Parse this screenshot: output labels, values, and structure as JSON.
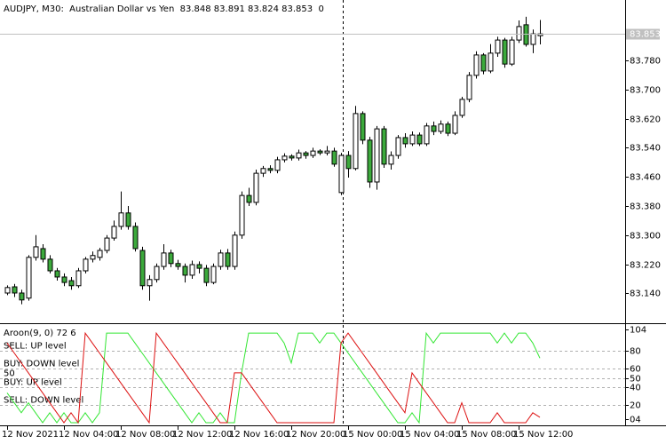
{
  "chart_data": [
    {
      "type": "candlestick",
      "title": "AUDJPY, M30:  Australian Dollar vs Yen  83.848 83.891 83.824 83.853  0",
      "categories": [
        "12 Nov 2021",
        null,
        null,
        null,
        null,
        null,
        null,
        null,
        "12 Nov 04:00",
        null,
        null,
        null,
        null,
        null,
        null,
        null,
        "12 Nov 08:00",
        null,
        null,
        null,
        null,
        null,
        null,
        null,
        "12 Nov 12:00",
        null,
        null,
        null,
        null,
        null,
        null,
        null,
        "12 Nov 16:00",
        null,
        null,
        null,
        null,
        null,
        null,
        null,
        "12 Nov 20:00",
        null,
        null,
        null,
        null,
        null,
        null,
        null,
        "15 Nov 00:00",
        null,
        null,
        null,
        null,
        null,
        null,
        null,
        "15 Nov 04:00",
        null,
        null,
        null,
        null,
        null,
        null,
        null,
        "15 Nov 08:00",
        null,
        null,
        null,
        null,
        null,
        null,
        null,
        "15 Nov 12:00",
        null,
        null,
        null
      ],
      "open": [
        83.141,
        83.158,
        83.141,
        83.127,
        83.239,
        83.263,
        83.234,
        83.202,
        83.185,
        83.175,
        83.161,
        83.202,
        83.234,
        83.239,
        83.258,
        83.292,
        83.324,
        83.361,
        83.324,
        83.258,
        83.161,
        83.178,
        83.214,
        83.251,
        83.222,
        83.214,
        83.19,
        83.219,
        83.209,
        83.17,
        83.214,
        83.251,
        83.214,
        83.3,
        83.409,
        83.39,
        83.47,
        83.483,
        83.478,
        83.507,
        83.517,
        83.512,
        83.526,
        83.519,
        83.531,
        83.526,
        83.531,
        83.417,
        83.519,
        83.483,
        83.634,
        83.561,
        83.446,
        83.592,
        83.495,
        83.519,
        83.568,
        83.551,
        83.575,
        83.551,
        83.6,
        83.585,
        83.605,
        83.58,
        83.629,
        83.673,
        83.739,
        83.795,
        83.751,
        83.8,
        83.836,
        83.77,
        83.836,
        83.878,
        83.824,
        83.848
      ],
      "high": [
        83.162,
        83.166,
        83.15,
        83.245,
        83.3,
        83.275,
        83.245,
        83.21,
        83.195,
        83.185,
        83.21,
        83.24,
        83.255,
        83.265,
        83.3,
        83.34,
        83.42,
        83.38,
        83.335,
        83.268,
        83.19,
        83.222,
        83.275,
        83.26,
        83.232,
        83.222,
        83.23,
        83.228,
        83.218,
        83.222,
        83.26,
        83.262,
        83.31,
        83.42,
        83.43,
        83.48,
        83.49,
        83.492,
        83.515,
        83.525,
        83.522,
        83.535,
        83.531,
        83.54,
        83.536,
        83.545,
        83.54,
        83.526,
        83.531,
        83.655,
        83.64,
        83.57,
        83.6,
        83.6,
        83.53,
        83.575,
        83.58,
        83.585,
        83.582,
        83.608,
        83.612,
        83.615,
        83.612,
        83.64,
        83.68,
        83.748,
        83.805,
        83.8,
        83.825,
        83.845,
        83.842,
        83.845,
        83.89,
        83.9,
        83.865,
        83.891
      ],
      "low": [
        83.135,
        83.13,
        83.11,
        83.12,
        83.23,
        83.225,
        83.195,
        83.175,
        83.16,
        83.15,
        83.155,
        83.195,
        83.225,
        83.23,
        83.25,
        83.285,
        83.315,
        83.315,
        83.255,
        83.15,
        83.12,
        83.17,
        83.205,
        83.212,
        83.205,
        83.17,
        83.18,
        83.195,
        83.16,
        83.165,
        83.205,
        83.205,
        83.205,
        83.29,
        83.38,
        83.382,
        83.46,
        83.47,
        83.47,
        83.5,
        83.505,
        83.505,
        83.51,
        83.512,
        83.52,
        83.519,
        83.488,
        83.41,
        83.458,
        83.478,
        83.55,
        83.43,
        83.425,
        83.485,
        83.48,
        83.51,
        83.54,
        83.545,
        83.545,
        83.545,
        83.575,
        83.578,
        83.572,
        83.575,
        83.622,
        83.665,
        83.73,
        83.742,
        83.745,
        83.79,
        83.76,
        83.765,
        83.828,
        83.818,
        83.8,
        83.824
      ],
      "close": [
        83.156,
        83.141,
        83.122,
        83.239,
        83.268,
        83.234,
        83.202,
        83.185,
        83.17,
        83.161,
        83.202,
        83.234,
        83.244,
        83.258,
        83.292,
        83.324,
        83.361,
        83.324,
        83.263,
        83.161,
        83.178,
        83.214,
        83.251,
        83.222,
        83.214,
        83.19,
        83.219,
        83.209,
        83.17,
        83.214,
        83.251,
        83.214,
        83.3,
        83.409,
        83.39,
        83.47,
        83.483,
        83.478,
        83.507,
        83.517,
        83.512,
        83.526,
        83.519,
        83.531,
        83.526,
        83.531,
        83.495,
        83.519,
        83.483,
        83.634,
        83.561,
        83.446,
        83.592,
        83.495,
        83.519,
        83.568,
        83.551,
        83.575,
        83.551,
        83.6,
        83.585,
        83.605,
        83.58,
        83.629,
        83.673,
        83.739,
        83.795,
        83.751,
        83.8,
        83.836,
        83.77,
        83.836,
        83.873,
        83.824,
        83.853,
        83.853
      ],
      "up_color": "#ffffff",
      "down_color": "#3caa3c",
      "outline_color": "#000000",
      "ylim": [
        83.058,
        83.946
      ],
      "yticks": [
        {
          "value": 83.14,
          "label": "83.140"
        },
        {
          "value": 83.22,
          "label": "83.220"
        },
        {
          "value": 83.3,
          "label": "83.300"
        },
        {
          "value": 83.38,
          "label": "83.380"
        },
        {
          "value": 83.46,
          "label": "83.460"
        },
        {
          "value": 83.54,
          "label": "83.540"
        },
        {
          "value": 83.62,
          "label": "83.620"
        },
        {
          "value": 83.7,
          "label": "83.700"
        },
        {
          "value": 83.78,
          "label": "83.780"
        }
      ],
      "grid": false
    },
    {
      "type": "line",
      "title": "Aroon(9, 0) 72 6",
      "series": [
        {
          "color": "#33e633",
          "values": [
            33.3,
            22.2,
            11.1,
            22.2,
            11.1,
            0,
            11.1,
            0,
            11.1,
            0,
            0,
            11.1,
            0,
            11.1,
            100,
            100,
            100,
            100,
            88.9,
            77.8,
            66.7,
            55.6,
            44.4,
            33.3,
            22.2,
            11.1,
            0,
            11.1,
            0,
            0,
            11.1,
            0,
            0,
            55.6,
            100,
            100,
            100,
            100,
            100,
            88.9,
            66.7,
            100,
            100,
            100,
            88.9,
            100,
            100,
            88.9,
            77.8,
            66.7,
            55.6,
            44.4,
            33.3,
            22.2,
            11.1,
            0,
            0,
            11.1,
            0,
            100,
            88.9,
            100,
            100,
            100,
            100,
            100,
            100,
            100,
            100,
            88.9,
            100,
            88.9,
            100,
            100,
            88.9,
            72
          ]
        },
        {
          "color": "#dd1111",
          "values": [
            88.9,
            77.8,
            66.7,
            55.6,
            44.4,
            33.3,
            22.2,
            11.1,
            0,
            11.1,
            0,
            100,
            88.9,
            77.8,
            66.7,
            55.6,
            44.4,
            33.3,
            22.2,
            11.1,
            0,
            100,
            88.9,
            77.8,
            66.7,
            55.6,
            44.4,
            33.3,
            22.2,
            11.1,
            0,
            0,
            55.6,
            55.6,
            44.4,
            33.3,
            22.2,
            11.1,
            0,
            0,
            0,
            0,
            0,
            0,
            0,
            0,
            0,
            88.9,
            100,
            88.9,
            77.8,
            66.7,
            55.6,
            44.4,
            33.3,
            22.2,
            11.1,
            55.6,
            44.4,
            33.3,
            22.2,
            11.1,
            0,
            0,
            22.2,
            0,
            0,
            0,
            0,
            11.1,
            0,
            0,
            0,
            0,
            11.1,
            6
          ]
        }
      ],
      "levels": [
        {
          "label": "SELL: UP level",
          "value": 80
        },
        {
          "label": "BUY: DOWN level",
          "value": 60
        },
        {
          "label": "50",
          "value": 50
        },
        {
          "label": "BUY: UP level",
          "value": 40
        },
        {
          "label": "SELL: DOWN level",
          "value": 20
        }
      ],
      "ylim": [
        -2,
        109
      ],
      "yticks": [
        104,
        80,
        60,
        50,
        40,
        20,
        {
          "value": 4,
          "label": "04"
        }
      ]
    }
  ]
}
